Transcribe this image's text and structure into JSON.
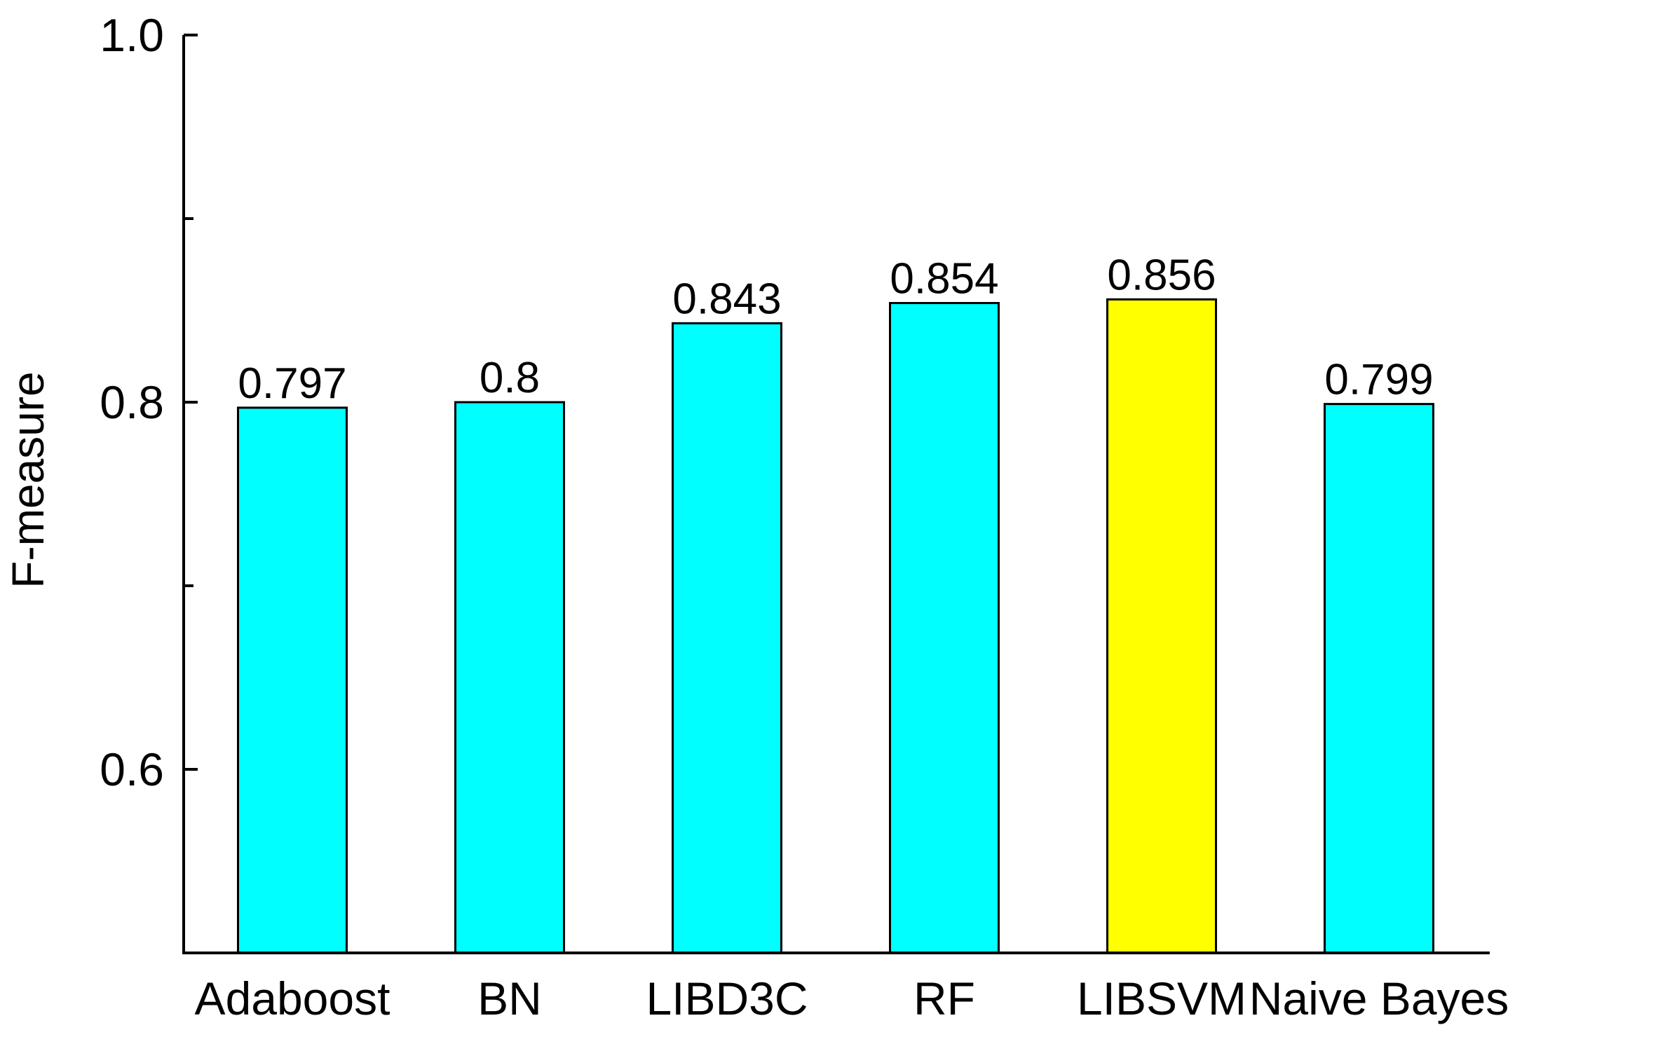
{
  "chart_data": {
    "type": "bar",
    "title": "",
    "xlabel": "",
    "ylabel": "F-measure",
    "ylim": [
      0.5,
      1.0
    ],
    "yticks": [
      0.6,
      0.8,
      1.0
    ],
    "ytick_labels": [
      "0.6",
      "0.8",
      "1.0"
    ],
    "minor_yticks": [
      0.7,
      0.9
    ],
    "grid": false,
    "categories": [
      "Adaboost",
      "BN",
      "LIBD3C",
      "RF",
      "LIBSVM",
      "Naive Bayes"
    ],
    "values": [
      0.797,
      0.8,
      0.843,
      0.854,
      0.856,
      0.799
    ],
    "value_labels": [
      "0.797",
      "0.8",
      "0.843",
      "0.854",
      "0.856",
      "0.799"
    ],
    "colors": [
      "#00ffff",
      "#00ffff",
      "#00ffff",
      "#00ffff",
      "#ffff00",
      "#00ffff"
    ]
  }
}
